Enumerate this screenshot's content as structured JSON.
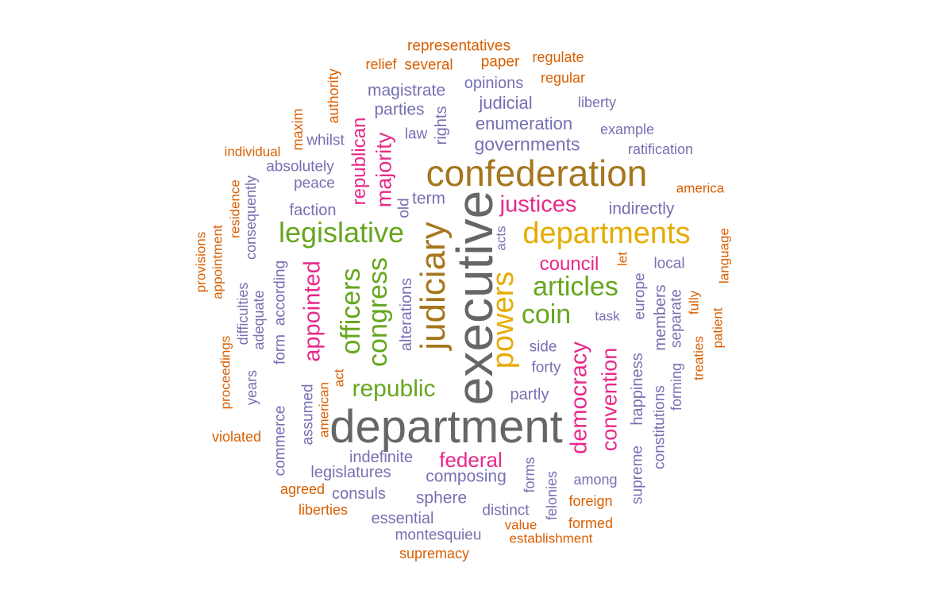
{
  "colors": {
    "gray": "#666666",
    "gold_dark": "#a6761d",
    "gold": "#e6ab02",
    "green": "#66a61e",
    "pink": "#e7298a",
    "purple": "#7570b3",
    "orange": "#d95f02"
  },
  "words": [
    {
      "text": "executive",
      "color": "gray"
    },
    {
      "text": "department",
      "color": "gray"
    },
    {
      "text": "confederation",
      "color": "gold_dark"
    },
    {
      "text": "judiciary",
      "color": "gold_dark"
    },
    {
      "text": "departments",
      "color": "gold"
    },
    {
      "text": "powers",
      "color": "gold"
    },
    {
      "text": "legislative",
      "color": "green"
    },
    {
      "text": "congress",
      "color": "green"
    },
    {
      "text": "officers",
      "color": "green"
    },
    {
      "text": "articles",
      "color": "green"
    },
    {
      "text": "coin",
      "color": "green"
    },
    {
      "text": "republic",
      "color": "green"
    },
    {
      "text": "justices",
      "color": "pink"
    },
    {
      "text": "council",
      "color": "pink"
    },
    {
      "text": "appointed",
      "color": "pink"
    },
    {
      "text": "democracy",
      "color": "pink"
    },
    {
      "text": "convention",
      "color": "pink"
    },
    {
      "text": "federal",
      "color": "pink"
    },
    {
      "text": "republican",
      "color": "pink"
    },
    {
      "text": "majority",
      "color": "pink"
    },
    {
      "text": "governments",
      "color": "purple"
    },
    {
      "text": "enumeration",
      "color": "purple"
    },
    {
      "text": "judicial",
      "color": "purple"
    },
    {
      "text": "magistrate",
      "color": "purple"
    },
    {
      "text": "opinions",
      "color": "purple"
    },
    {
      "text": "parties",
      "color": "purple"
    },
    {
      "text": "liberty",
      "color": "purple"
    },
    {
      "text": "example",
      "color": "purple"
    },
    {
      "text": "ratification",
      "color": "purple"
    },
    {
      "text": "rights",
      "color": "purple"
    },
    {
      "text": "law",
      "color": "purple"
    },
    {
      "text": "whilst",
      "color": "purple"
    },
    {
      "text": "absolutely",
      "color": "purple"
    },
    {
      "text": "peace",
      "color": "purple"
    },
    {
      "text": "term",
      "color": "purple"
    },
    {
      "text": "old",
      "color": "purple"
    },
    {
      "text": "faction",
      "color": "purple"
    },
    {
      "text": "indirectly",
      "color": "purple"
    },
    {
      "text": "acts",
      "color": "purple"
    },
    {
      "text": "local",
      "color": "purple"
    },
    {
      "text": "consequently",
      "color": "purple"
    },
    {
      "text": "according",
      "color": "purple"
    },
    {
      "text": "form",
      "color": "purple"
    },
    {
      "text": "alterations",
      "color": "purple"
    },
    {
      "text": "task",
      "color": "purple"
    },
    {
      "text": "europe",
      "color": "purple"
    },
    {
      "text": "members",
      "color": "purple"
    },
    {
      "text": "separate",
      "color": "purple"
    },
    {
      "text": "forming",
      "color": "purple"
    },
    {
      "text": "difficulties",
      "color": "purple"
    },
    {
      "text": "adequate",
      "color": "purple"
    },
    {
      "text": "side",
      "color": "purple"
    },
    {
      "text": "forty",
      "color": "purple"
    },
    {
      "text": "happiness",
      "color": "purple"
    },
    {
      "text": "constitutions",
      "color": "purple"
    },
    {
      "text": "supreme",
      "color": "purple"
    },
    {
      "text": "years",
      "color": "purple"
    },
    {
      "text": "commerce",
      "color": "purple"
    },
    {
      "text": "assumed",
      "color": "purple"
    },
    {
      "text": "partly",
      "color": "purple"
    },
    {
      "text": "indefinite",
      "color": "purple"
    },
    {
      "text": "legislatures",
      "color": "purple"
    },
    {
      "text": "composing",
      "color": "purple"
    },
    {
      "text": "forms",
      "color": "purple"
    },
    {
      "text": "among",
      "color": "purple"
    },
    {
      "text": "consuls",
      "color": "purple"
    },
    {
      "text": "sphere",
      "color": "purple"
    },
    {
      "text": "felonies",
      "color": "purple"
    },
    {
      "text": "distinct",
      "color": "purple"
    },
    {
      "text": "essential",
      "color": "purple"
    },
    {
      "text": "montesquieu",
      "color": "purple"
    },
    {
      "text": "representatives",
      "color": "orange"
    },
    {
      "text": "relief",
      "color": "orange"
    },
    {
      "text": "several",
      "color": "orange"
    },
    {
      "text": "paper",
      "color": "orange"
    },
    {
      "text": "regulate",
      "color": "orange"
    },
    {
      "text": "regular",
      "color": "orange"
    },
    {
      "text": "authority",
      "color": "orange"
    },
    {
      "text": "maxim",
      "color": "orange"
    },
    {
      "text": "individual",
      "color": "orange"
    },
    {
      "text": "america",
      "color": "orange"
    },
    {
      "text": "residence",
      "color": "orange"
    },
    {
      "text": "appointment",
      "color": "orange"
    },
    {
      "text": "provisions",
      "color": "orange"
    },
    {
      "text": "language",
      "color": "orange"
    },
    {
      "text": "let",
      "color": "orange"
    },
    {
      "text": "fully",
      "color": "orange"
    },
    {
      "text": "patient",
      "color": "orange"
    },
    {
      "text": "treaties",
      "color": "orange"
    },
    {
      "text": "proceedings",
      "color": "orange"
    },
    {
      "text": "act",
      "color": "orange"
    },
    {
      "text": "american",
      "color": "orange"
    },
    {
      "text": "violated",
      "color": "orange"
    },
    {
      "text": "agreed",
      "color": "orange"
    },
    {
      "text": "liberties",
      "color": "orange"
    },
    {
      "text": "foreign",
      "color": "orange"
    },
    {
      "text": "formed",
      "color": "orange"
    },
    {
      "text": "value",
      "color": "orange"
    },
    {
      "text": "establishment",
      "color": "orange"
    },
    {
      "text": "supremacy",
      "color": "orange"
    }
  ]
}
